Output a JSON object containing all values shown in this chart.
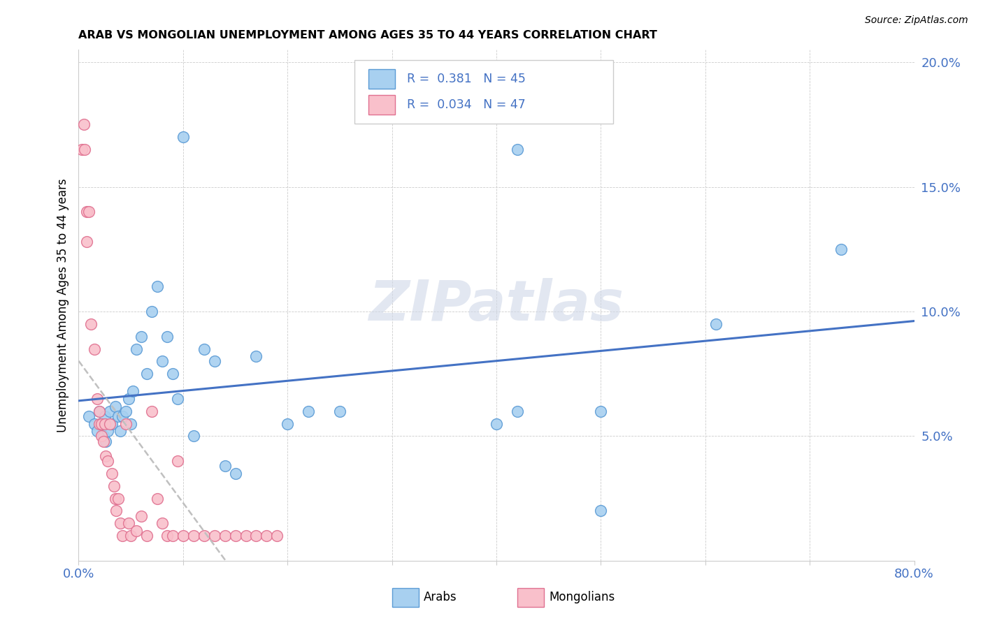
{
  "title": "ARAB VS MONGOLIAN UNEMPLOYMENT AMONG AGES 35 TO 44 YEARS CORRELATION CHART",
  "source": "Source: ZipAtlas.com",
  "ylabel": "Unemployment Among Ages 35 to 44 years",
  "xlim": [
    0.0,
    0.8
  ],
  "ylim": [
    0.0,
    0.205
  ],
  "xticks": [
    0.0,
    0.1,
    0.2,
    0.3,
    0.4,
    0.5,
    0.6,
    0.7,
    0.8
  ],
  "xticklabels": [
    "0.0%",
    "",
    "",
    "",
    "",
    "",
    "",
    "",
    "80.0%"
  ],
  "yticks": [
    0.0,
    0.05,
    0.1,
    0.15,
    0.2
  ],
  "yticklabels": [
    "",
    "5.0%",
    "10.0%",
    "15.0%",
    "20.0%"
  ],
  "arab_color": "#A8D0F0",
  "mongolian_color": "#F9C0CB",
  "arab_edge_color": "#5B9BD5",
  "mongolian_edge_color": "#E07090",
  "trend_arab_color": "#4472C4",
  "trend_mongolian_color": "#C0C0C0",
  "watermark": "ZIPatlas",
  "legend_R_arab": "0.381",
  "legend_N_arab": "45",
  "legend_R_mongolian": "0.034",
  "legend_N_mongolian": "47",
  "arab_x": [
    0.01,
    0.015,
    0.018,
    0.02,
    0.022,
    0.024,
    0.025,
    0.026,
    0.028,
    0.03,
    0.032,
    0.035,
    0.038,
    0.04,
    0.042,
    0.045,
    0.048,
    0.05,
    0.052,
    0.055,
    0.06,
    0.065,
    0.07,
    0.075,
    0.08,
    0.085,
    0.09,
    0.095,
    0.1,
    0.11,
    0.12,
    0.13,
    0.14,
    0.17,
    0.2,
    0.22,
    0.25,
    0.4,
    0.42,
    0.5,
    0.42,
    0.5,
    0.61,
    0.73,
    0.15
  ],
  "arab_y": [
    0.058,
    0.055,
    0.052,
    0.06,
    0.055,
    0.05,
    0.058,
    0.048,
    0.052,
    0.06,
    0.055,
    0.062,
    0.058,
    0.052,
    0.058,
    0.06,
    0.065,
    0.055,
    0.068,
    0.085,
    0.09,
    0.075,
    0.1,
    0.11,
    0.08,
    0.09,
    0.075,
    0.065,
    0.17,
    0.05,
    0.085,
    0.08,
    0.038,
    0.082,
    0.055,
    0.06,
    0.06,
    0.055,
    0.165,
    0.02,
    0.06,
    0.06,
    0.095,
    0.125,
    0.035
  ],
  "mongolian_x": [
    0.003,
    0.005,
    0.006,
    0.008,
    0.008,
    0.01,
    0.012,
    0.015,
    0.018,
    0.02,
    0.02,
    0.022,
    0.022,
    0.024,
    0.025,
    0.026,
    0.028,
    0.03,
    0.032,
    0.034,
    0.035,
    0.036,
    0.038,
    0.04,
    0.042,
    0.045,
    0.048,
    0.05,
    0.055,
    0.06,
    0.065,
    0.07,
    0.075,
    0.08,
    0.085,
    0.09,
    0.095,
    0.1,
    0.11,
    0.12,
    0.13,
    0.14,
    0.15,
    0.16,
    0.17,
    0.18,
    0.19
  ],
  "mongolian_y": [
    0.165,
    0.175,
    0.165,
    0.14,
    0.128,
    0.14,
    0.095,
    0.085,
    0.065,
    0.055,
    0.06,
    0.05,
    0.055,
    0.048,
    0.055,
    0.042,
    0.04,
    0.055,
    0.035,
    0.03,
    0.025,
    0.02,
    0.025,
    0.015,
    0.01,
    0.055,
    0.015,
    0.01,
    0.012,
    0.018,
    0.01,
    0.06,
    0.025,
    0.015,
    0.01,
    0.01,
    0.04,
    0.01,
    0.01,
    0.01,
    0.01,
    0.01,
    0.01,
    0.01,
    0.01,
    0.01,
    0.01
  ]
}
